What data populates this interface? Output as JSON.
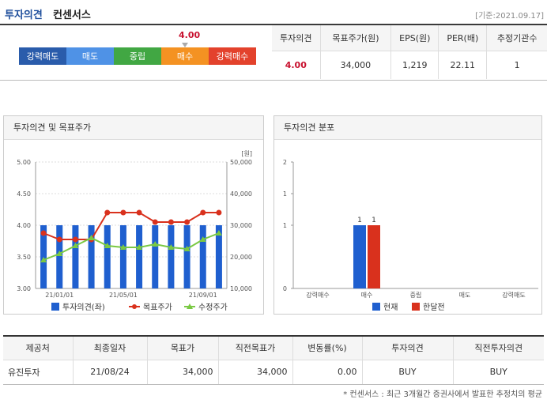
{
  "header": {
    "title_main": "투자의견",
    "title_sub": "컨센서스",
    "base_date": "[기준:2021.09.17]"
  },
  "scale": {
    "marker_value": "4.00",
    "marker_level": 4.0,
    "labels": [
      "강력매도",
      "매도",
      "중립",
      "매수",
      "강력매수"
    ]
  },
  "summary": {
    "headers": [
      "투자의견",
      "목표주가(원)",
      "EPS(원)",
      "PER(배)",
      "추정기관수"
    ],
    "values": [
      "4.00",
      "34,000",
      "1,219",
      "22.11",
      "1"
    ]
  },
  "panel_left": {
    "title": "투자의견 및 목표주가"
  },
  "panel_right": {
    "title": "투자의견 분포"
  },
  "chart_data": [
    {
      "type": "bar",
      "xlabel": "",
      "ylabel": "",
      "y_left_ticks": [
        "5.00",
        "4.50",
        "4.00",
        "3.50",
        "3.00"
      ],
      "y_left_range": [
        3.0,
        5.0
      ],
      "y_right_ticks": [
        "50,000",
        "40,000",
        "30,000",
        "20,000",
        "10,000"
      ],
      "y_right_range": [
        10000,
        50000
      ],
      "unit_right": "[원]",
      "x_ticks": [
        "21/01/01",
        "21/05/01",
        "21/09/01"
      ],
      "n_periods": 12,
      "series": [
        {
          "name": "투자의견(좌)",
          "kind": "bar",
          "axis": "left",
          "color": "#1f5fcf",
          "values": [
            4.0,
            4.0,
            4.0,
            4.0,
            4.0,
            4.0,
            4.0,
            4.0,
            4.0,
            4.0,
            4.0,
            4.0
          ]
        },
        {
          "name": "목표주가",
          "kind": "line",
          "axis": "right",
          "color": "#d9311d",
          "values": [
            27500,
            25500,
            25500,
            25500,
            34000,
            34000,
            34000,
            31000,
            31000,
            31000,
            34000,
            34000
          ]
        },
        {
          "name": "수정주가",
          "kind": "line",
          "axis": "right",
          "color": "#7ac943",
          "values": [
            19000,
            21000,
            23500,
            26000,
            23500,
            23000,
            23000,
            24000,
            23000,
            22500,
            25500,
            27500
          ]
        }
      ],
      "grid": true,
      "legend": "bottom"
    },
    {
      "type": "bar",
      "xlabel": "",
      "ylabel": "",
      "y_ticks": [
        "2",
        "1",
        "1",
        "0"
      ],
      "ylim": [
        0,
        2
      ],
      "categories": [
        "강력매수",
        "매수",
        "중립",
        "매도",
        "강력매도"
      ],
      "series": [
        {
          "name": "현재",
          "color": "#1f5fcf",
          "values": [
            0,
            1,
            0,
            0,
            0
          ]
        },
        {
          "name": "한달전",
          "color": "#d9311d",
          "values": [
            0,
            1,
            0,
            0,
            0
          ]
        }
      ],
      "data_labels": [
        "1",
        "1"
      ],
      "grid": false,
      "legend": "bottom"
    }
  ],
  "table": {
    "headers": [
      "제공처",
      "최종일자",
      "목표가",
      "직전목표가",
      "변동률(%)",
      "투자의견",
      "직전투자의견"
    ],
    "rows": [
      [
        "유진투자",
        "21/08/24",
        "34,000",
        "34,000",
        "0.00",
        "BUY",
        "BUY"
      ]
    ]
  },
  "note": "* 컨센서스 : 최근 3개월간 증권사에서 발표한 추정치의 평균"
}
